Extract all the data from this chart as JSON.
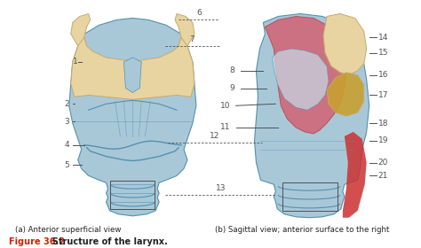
{
  "fig_width": 4.74,
  "fig_height": 2.8,
  "dpi": 100,
  "bg_color": "#f5f5f0",
  "title_red": "Figure 36.2",
  "title_black": "  Structure of the larynx.",
  "title_color": "#cc2200",
  "title_fontsize": 7.0,
  "caption_a": "(a) Anterior superficial view",
  "caption_b": "(b) Sagittal view; anterior surface to the right",
  "caption_fontsize": 6.2,
  "label_fontsize": 6.5,
  "line_color": "#444444",
  "blue_light": "#a8c8d8",
  "blue_mid": "#7aafc4",
  "blue_dark": "#5590b0",
  "blue_inner": "#c8dce8",
  "beige_light": "#e8d4a0",
  "beige_dark": "#c8a870",
  "pink": "#d06878",
  "pink_dark": "#b84858",
  "red_strip": "#cc3030",
  "tan_nodule": "#c8a030",
  "white": "#f0f0ee",
  "gray_line": "#505050"
}
